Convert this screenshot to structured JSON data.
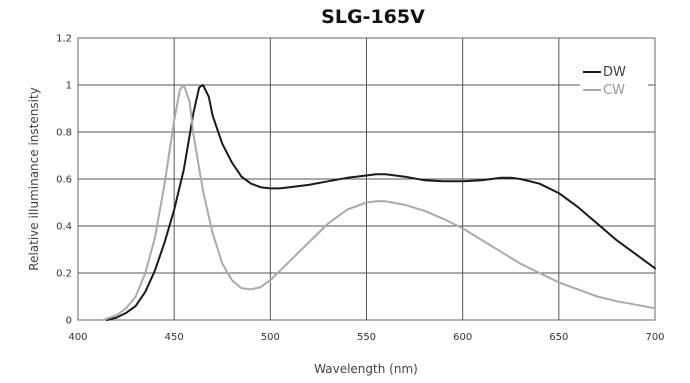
{
  "chart_data": {
    "type": "line",
    "title": "SLG-165V",
    "xlabel": "Wavelength (nm)",
    "ylabel": "Relative illuminance instensity",
    "xlim": [
      400,
      700
    ],
    "ylim": [
      0,
      1.2
    ],
    "x_ticks": [
      "400",
      "450",
      "500",
      "550",
      "600",
      "650",
      "700"
    ],
    "y_ticks": [
      "0",
      "0.2",
      "0.4",
      "0.6",
      "0.8",
      "1",
      "1.2"
    ],
    "grid": true,
    "legend": "top-right",
    "series": [
      {
        "name": "DW",
        "color": "#1a1a1a",
        "points": [
          [
            415,
            0
          ],
          [
            420,
            0.01
          ],
          [
            425,
            0.03
          ],
          [
            430,
            0.06
          ],
          [
            435,
            0.12
          ],
          [
            440,
            0.21
          ],
          [
            445,
            0.33
          ],
          [
            450,
            0.47
          ],
          [
            455,
            0.64
          ],
          [
            460,
            0.88
          ],
          [
            463,
            0.99
          ],
          [
            465,
            1.0
          ],
          [
            468,
            0.95
          ],
          [
            470,
            0.87
          ],
          [
            475,
            0.75
          ],
          [
            480,
            0.67
          ],
          [
            485,
            0.61
          ],
          [
            490,
            0.58
          ],
          [
            495,
            0.565
          ],
          [
            500,
            0.56
          ],
          [
            505,
            0.56
          ],
          [
            510,
            0.565
          ],
          [
            520,
            0.575
          ],
          [
            530,
            0.59
          ],
          [
            540,
            0.605
          ],
          [
            550,
            0.615
          ],
          [
            555,
            0.62
          ],
          [
            560,
            0.62
          ],
          [
            570,
            0.61
          ],
          [
            580,
            0.595
          ],
          [
            590,
            0.59
          ],
          [
            600,
            0.59
          ],
          [
            610,
            0.595
          ],
          [
            620,
            0.605
          ],
          [
            625,
            0.605
          ],
          [
            630,
            0.6
          ],
          [
            640,
            0.58
          ],
          [
            650,
            0.54
          ],
          [
            660,
            0.48
          ],
          [
            670,
            0.41
          ],
          [
            680,
            0.34
          ],
          [
            690,
            0.28
          ],
          [
            700,
            0.22
          ]
        ]
      },
      {
        "name": "CW",
        "color": "#aaaaaa",
        "points": [
          [
            413,
            0
          ],
          [
            420,
            0.02
          ],
          [
            425,
            0.05
          ],
          [
            430,
            0.1
          ],
          [
            435,
            0.2
          ],
          [
            440,
            0.35
          ],
          [
            445,
            0.58
          ],
          [
            450,
            0.85
          ],
          [
            453,
            0.98
          ],
          [
            455,
            1.0
          ],
          [
            458,
            0.93
          ],
          [
            460,
            0.79
          ],
          [
            465,
            0.55
          ],
          [
            470,
            0.37
          ],
          [
            475,
            0.24
          ],
          [
            480,
            0.17
          ],
          [
            485,
            0.135
          ],
          [
            490,
            0.13
          ],
          [
            495,
            0.14
          ],
          [
            500,
            0.17
          ],
          [
            510,
            0.25
          ],
          [
            520,
            0.33
          ],
          [
            530,
            0.41
          ],
          [
            540,
            0.47
          ],
          [
            550,
            0.5
          ],
          [
            555,
            0.505
          ],
          [
            560,
            0.505
          ],
          [
            570,
            0.49
          ],
          [
            580,
            0.465
          ],
          [
            590,
            0.43
          ],
          [
            600,
            0.39
          ],
          [
            610,
            0.34
          ],
          [
            620,
            0.29
          ],
          [
            630,
            0.24
          ],
          [
            640,
            0.2
          ],
          [
            650,
            0.16
          ],
          [
            660,
            0.13
          ],
          [
            670,
            0.1
          ],
          [
            680,
            0.08
          ],
          [
            690,
            0.065
          ],
          [
            700,
            0.05
          ]
        ]
      }
    ]
  }
}
